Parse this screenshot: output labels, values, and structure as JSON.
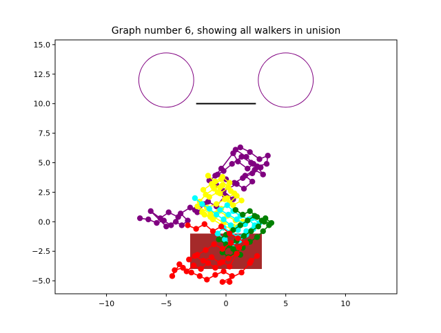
{
  "chart_data": {
    "type": "scatter",
    "title": "Graph number 6, showing all walkers in unision",
    "xlabel": "",
    "ylabel": "",
    "xlim": [
      -14.3,
      14.3
    ],
    "ylim": [
      -6.1,
      15.4
    ],
    "grid": false,
    "x_ticks": [
      -10,
      -5,
      0,
      5,
      10
    ],
    "x_tick_labels": [
      "−10",
      "−5",
      "0",
      "5",
      "10"
    ],
    "y_ticks": [
      -5.0,
      -2.5,
      0.0,
      2.5,
      5.0,
      7.5,
      10.0,
      12.5,
      15.0
    ],
    "y_tick_labels": [
      "−5.0",
      "−2.5",
      "0.0",
      "2.5",
      "5.0",
      "7.5",
      "10.0",
      "12.5",
      "15.0"
    ],
    "shapes": [
      {
        "kind": "circle",
        "cx": -5,
        "cy": 12,
        "r": 2.3,
        "color": "#800080"
      },
      {
        "kind": "circle",
        "cx": 5,
        "cy": 12,
        "r": 2.3,
        "color": "#800080"
      },
      {
        "kind": "line",
        "x": [
          -2.5,
          2.5
        ],
        "y": [
          10,
          10
        ],
        "color": "#000000"
      },
      {
        "kind": "rect",
        "x": -3,
        "y": -4,
        "width": 6,
        "height": 3,
        "color": "#a52a2a"
      }
    ],
    "series": [
      {
        "color": "#800080",
        "x": [
          -7.2,
          -6.5,
          -5.8,
          -5.2,
          -4.6,
          -4.0,
          -4.8,
          -5.5,
          -6.3,
          -5.0,
          -4.2,
          -3.7,
          -3.2,
          -3.8,
          -3.0,
          -2.4,
          -1.8,
          -2.6,
          -1.5,
          -0.8,
          -0.1,
          0.6,
          -0.2,
          0.9,
          1.5,
          2.2,
          1.6,
          2.4,
          3.1,
          2.6,
          3.4,
          3.5,
          2.8,
          2.0,
          1.2,
          0.6,
          1.0,
          1.8,
          2.3,
          1.7,
          0.8,
          -0.4,
          -0.9,
          -0.2,
          0.5,
          1.3,
          2.1,
          2.9,
          2.2,
          1.4,
          0.7,
          0.0,
          -0.7,
          -1.4,
          -0.8
        ],
        "y": [
          0.3,
          0.2,
          -0.1,
          0.1,
          -0.3,
          0.4,
          0.8,
          0.3,
          0.9,
          -0.4,
          0.0,
          -0.3,
          0.1,
          0.7,
          1.2,
          0.8,
          1.5,
          1.0,
          1.7,
          1.3,
          2.2,
          1.9,
          2.6,
          3.2,
          2.8,
          3.4,
          3.9,
          4.4,
          4.0,
          4.7,
          4.9,
          5.6,
          5.3,
          5.9,
          6.3,
          5.8,
          5.1,
          4.5,
          4.9,
          5.5,
          6.1,
          4.5,
          3.9,
          4.3,
          4.9,
          5.5,
          5.0,
          4.6,
          4.1,
          3.7,
          3.3,
          3.6,
          4.0,
          3.5,
          3.1
        ]
      },
      {
        "color": "#ffff00",
        "x": [
          -1.5,
          -0.9,
          -0.3,
          0.3,
          -0.5,
          -1.2,
          -1.9,
          -1.4,
          -0.7,
          0.1,
          0.7,
          1.3,
          0.6,
          -0.1,
          -0.8,
          -1.6,
          -2.2,
          -1.7,
          -1.0,
          -0.3,
          0.4,
          -0.4,
          -1.1,
          -0.5,
          0.2,
          0.9,
          0.3,
          -0.4,
          -1.3,
          -2.4,
          -2.0,
          -1.3,
          -0.6,
          0.1,
          0.8,
          1.5,
          2.1,
          1.4,
          0.6,
          -0.2,
          -1.0,
          -1.8,
          -1.1,
          -0.3,
          0.5
        ],
        "y": [
          3.9,
          3.4,
          3.8,
          3.3,
          2.9,
          3.2,
          2.7,
          2.1,
          2.5,
          2.0,
          2.4,
          1.8,
          1.4,
          1.9,
          1.5,
          1.2,
          1.7,
          2.3,
          2.8,
          3.1,
          2.6,
          3.6,
          3.0,
          2.4,
          2.9,
          2.2,
          1.6,
          1.1,
          0.7,
          1.3,
          0.8,
          0.4,
          0.9,
          0.5,
          0.1,
          -0.2,
          0.3,
          0.0,
          -0.4,
          -0.1,
          0.4,
          0.6,
          0.2,
          -0.3,
          -0.6
        ]
      },
      {
        "color": "#00ffff",
        "x": [
          -2.6,
          -2.0,
          -1.4,
          -0.8,
          -0.2,
          0.4,
          1.0,
          1.6,
          2.2,
          2.8,
          2.3,
          1.7,
          1.1,
          0.5,
          -0.1,
          -0.7,
          -0.2,
          0.4,
          1.0,
          1.7,
          2.4,
          1.9,
          1.2,
          0.6,
          0.1,
          -0.5,
          0.2,
          0.9,
          1.6,
          1.0
        ],
        "y": [
          2.0,
          1.5,
          1.1,
          0.6,
          0.2,
          -0.3,
          -0.7,
          -0.2,
          0.3,
          -0.1,
          -0.6,
          -1.1,
          -1.6,
          -2.0,
          -1.5,
          -1.0,
          -0.5,
          -0.9,
          -1.3,
          -0.8,
          -0.3,
          0.2,
          0.5,
          0.9,
          1.4,
          1.0,
          0.6,
          0.2,
          -0.2,
          -0.5
        ]
      },
      {
        "color": "#008000",
        "x": [
          0.8,
          1.4,
          2.0,
          2.6,
          3.2,
          3.8,
          3.3,
          2.7,
          2.1,
          1.5,
          0.9,
          0.3,
          -0.3,
          0.2,
          0.8,
          1.4,
          2.0,
          2.6,
          3.1,
          3.6,
          3.0,
          2.4,
          1.8,
          1.2,
          0.6,
          0.0,
          -0.6,
          0.0,
          0.6,
          1.2
        ],
        "y": [
          1.0,
          0.6,
          0.9,
          0.4,
          0.0,
          -0.1,
          0.3,
          -0.4,
          -0.8,
          -1.2,
          -1.6,
          -2.0,
          -2.6,
          -3.0,
          -2.6,
          -2.2,
          -1.7,
          -1.3,
          -0.8,
          -0.3,
          0.1,
          0.5,
          0.1,
          -0.3,
          -0.7,
          -1.1,
          -1.5,
          -1.9,
          -2.3,
          -2.8
        ]
      },
      {
        "color": "#ff0000",
        "x": [
          -3.2,
          -2.5,
          -1.8,
          -1.1,
          -0.4,
          0.3,
          1.0,
          1.7,
          1.1,
          0.4,
          -0.3,
          -1.0,
          -1.7,
          -2.4,
          -3.1,
          -2.6,
          -1.9,
          -1.2,
          -0.5,
          0.2,
          0.9,
          0.3,
          -0.3,
          -0.9,
          -1.5,
          -2.1,
          -2.7,
          -3.3,
          -3.9,
          -4.5,
          -4.3,
          -3.6,
          -2.9,
          -2.2,
          -1.6,
          -0.9,
          -0.2,
          0.5,
          0.3,
          -0.3,
          1.3,
          2.0,
          2.6,
          2.1
        ],
        "y": [
          -0.3,
          -0.6,
          -0.2,
          -0.8,
          -0.4,
          -1.0,
          -1.4,
          -1.8,
          -2.2,
          -1.8,
          -2.3,
          -1.9,
          -2.4,
          -2.8,
          -3.2,
          -2.9,
          -3.3,
          -3.0,
          -3.5,
          -3.1,
          -2.7,
          -3.8,
          -3.4,
          -3.9,
          -3.5,
          -4.0,
          -3.7,
          -4.2,
          -3.6,
          -4.6,
          -4.1,
          -3.9,
          -4.3,
          -4.6,
          -4.9,
          -4.5,
          -4.2,
          -4.6,
          -5.1,
          -5.1,
          -4.3,
          -3.5,
          -2.9,
          -3.3
        ]
      }
    ]
  }
}
